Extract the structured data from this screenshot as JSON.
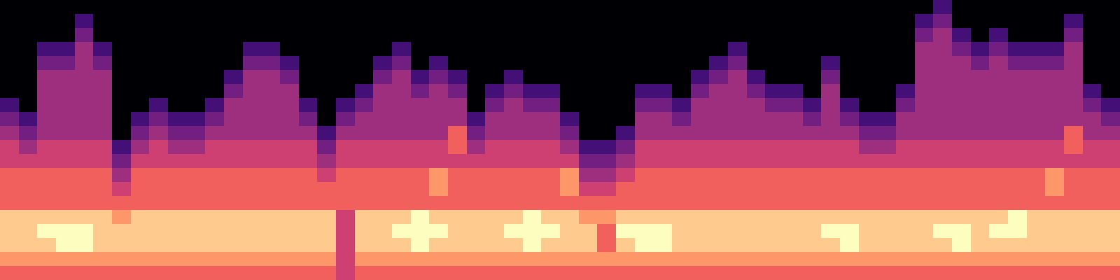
{
  "chart_data": {
    "type": "heatmap",
    "color": "magma",
    "zlim": [
      0,
      9
    ],
    "tick_labels": false,
    "cells": [
      [
        0,
        0,
        0,
        0,
        0,
        0,
        0,
        0,
        0,
        0,
        0,
        0,
        0,
        0,
        0,
        0,
        0,
        0,
        0,
        0,
        0,
        0,
        0,
        0,
        0,
        0,
        0,
        0,
        0,
        0,
        0,
        0,
        0,
        0,
        0,
        0,
        0,
        0,
        0,
        0,
        0,
        0,
        0,
        0,
        0,
        0,
        0,
        0,
        0,
        0,
        2,
        0,
        0,
        0,
        0,
        0,
        0,
        0,
        0,
        0
      ],
      [
        0,
        0,
        0,
        0,
        2,
        0,
        0,
        0,
        0,
        0,
        0,
        0,
        0,
        0,
        0,
        0,
        0,
        0,
        0,
        0,
        0,
        0,
        0,
        0,
        0,
        0,
        0,
        0,
        0,
        0,
        0,
        0,
        0,
        0,
        0,
        0,
        0,
        0,
        0,
        0,
        0,
        0,
        0,
        0,
        0,
        0,
        0,
        0,
        0,
        2,
        3,
        0,
        0,
        0,
        0,
        0,
        0,
        2,
        0,
        0
      ],
      [
        0,
        0,
        0,
        0,
        3,
        0,
        0,
        0,
        0,
        0,
        0,
        0,
        0,
        0,
        0,
        0,
        0,
        0,
        0,
        0,
        0,
        0,
        0,
        0,
        0,
        0,
        0,
        0,
        0,
        0,
        0,
        0,
        0,
        0,
        0,
        0,
        0,
        0,
        0,
        0,
        0,
        0,
        0,
        0,
        0,
        0,
        0,
        0,
        0,
        3,
        4,
        2,
        0,
        2,
        0,
        0,
        0,
        3,
        0,
        0
      ],
      [
        0,
        0,
        2,
        2,
        4,
        2,
        0,
        0,
        0,
        0,
        0,
        0,
        0,
        2,
        2,
        0,
        0,
        0,
        0,
        0,
        0,
        2,
        0,
        0,
        0,
        0,
        0,
        0,
        0,
        0,
        0,
        0,
        0,
        0,
        0,
        0,
        0,
        0,
        0,
        2,
        0,
        0,
        0,
        0,
        0,
        0,
        0,
        0,
        0,
        4,
        4,
        3,
        2,
        3,
        2,
        2,
        2,
        4,
        0,
        0
      ],
      [
        0,
        0,
        3,
        3,
        4,
        3,
        0,
        0,
        0,
        0,
        0,
        0,
        0,
        3,
        3,
        2,
        0,
        0,
        0,
        0,
        2,
        3,
        0,
        2,
        0,
        0,
        0,
        0,
        0,
        0,
        0,
        0,
        0,
        0,
        0,
        0,
        0,
        0,
        2,
        3,
        0,
        0,
        0,
        0,
        2,
        0,
        0,
        0,
        0,
        4,
        4,
        4,
        3,
        4,
        3,
        3,
        3,
        4,
        0,
        0
      ],
      [
        0,
        0,
        4,
        4,
        4,
        4,
        0,
        0,
        0,
        0,
        0,
        0,
        2,
        4,
        4,
        3,
        0,
        0,
        0,
        0,
        3,
        4,
        2,
        3,
        2,
        0,
        0,
        2,
        0,
        0,
        0,
        0,
        0,
        0,
        0,
        0,
        0,
        2,
        3,
        4,
        2,
        0,
        0,
        0,
        3,
        0,
        0,
        0,
        0,
        4,
        4,
        4,
        4,
        4,
        4,
        4,
        4,
        4,
        0,
        0
      ],
      [
        0,
        0,
        4,
        4,
        4,
        4,
        0,
        0,
        0,
        0,
        0,
        0,
        3,
        4,
        4,
        4,
        0,
        0,
        0,
        2,
        4,
        4,
        3,
        4,
        3,
        0,
        2,
        3,
        2,
        2,
        0,
        0,
        0,
        0,
        2,
        2,
        0,
        3,
        4,
        4,
        3,
        2,
        2,
        0,
        4,
        0,
        0,
        0,
        2,
        4,
        4,
        4,
        4,
        4,
        4,
        4,
        4,
        4,
        2,
        0
      ],
      [
        2,
        0,
        4,
        4,
        4,
        4,
        0,
        0,
        2,
        0,
        0,
        2,
        4,
        4,
        4,
        4,
        2,
        0,
        2,
        3,
        4,
        4,
        4,
        4,
        4,
        0,
        3,
        4,
        3,
        3,
        0,
        0,
        0,
        0,
        3,
        3,
        2,
        4,
        4,
        4,
        4,
        3,
        3,
        2,
        4,
        2,
        0,
        0,
        3,
        4,
        4,
        4,
        4,
        4,
        4,
        4,
        4,
        4,
        3,
        2
      ],
      [
        3,
        2,
        4,
        4,
        4,
        4,
        0,
        2,
        3,
        2,
        2,
        3,
        4,
        4,
        4,
        4,
        3,
        0,
        3,
        4,
        4,
        4,
        4,
        4,
        4,
        2,
        4,
        4,
        4,
        4,
        2,
        0,
        0,
        0,
        4,
        4,
        3,
        4,
        4,
        4,
        4,
        4,
        4,
        3,
        4,
        3,
        2,
        2,
        4,
        4,
        4,
        4,
        4,
        4,
        4,
        4,
        4,
        4,
        4,
        3
      ],
      [
        4,
        3,
        4,
        4,
        4,
        4,
        0,
        3,
        4,
        3,
        3,
        4,
        4,
        4,
        4,
        4,
        4,
        2,
        4,
        4,
        4,
        4,
        4,
        4,
        6,
        3,
        4,
        4,
        4,
        4,
        3,
        0,
        0,
        2,
        4,
        4,
        4,
        4,
        4,
        4,
        4,
        4,
        4,
        4,
        4,
        4,
        3,
        3,
        4,
        4,
        4,
        4,
        4,
        4,
        4,
        4,
        4,
        6,
        4,
        4
      ],
      [
        5,
        4,
        5,
        5,
        5,
        5,
        2,
        4,
        5,
        4,
        4,
        5,
        5,
        5,
        5,
        5,
        5,
        3,
        5,
        5,
        5,
        5,
        5,
        5,
        6,
        4,
        5,
        5,
        5,
        5,
        4,
        2,
        2,
        3,
        5,
        5,
        5,
        5,
        5,
        5,
        5,
        5,
        5,
        5,
        5,
        5,
        4,
        4,
        5,
        5,
        5,
        5,
        5,
        5,
        5,
        5,
        5,
        6,
        5,
        5
      ],
      [
        5,
        5,
        5,
        5,
        5,
        5,
        3,
        5,
        5,
        5,
        5,
        5,
        5,
        5,
        5,
        5,
        5,
        4,
        5,
        5,
        5,
        5,
        5,
        5,
        5,
        5,
        5,
        5,
        5,
        5,
        5,
        3,
        3,
        4,
        5,
        5,
        5,
        5,
        5,
        5,
        5,
        5,
        5,
        5,
        5,
        5,
        5,
        5,
        5,
        5,
        5,
        5,
        5,
        5,
        5,
        5,
        5,
        5,
        5,
        5
      ],
      [
        6,
        6,
        6,
        6,
        6,
        6,
        4,
        6,
        6,
        6,
        6,
        6,
        6,
        6,
        6,
        6,
        6,
        5,
        6,
        6,
        6,
        6,
        6,
        7,
        6,
        6,
        6,
        6,
        6,
        6,
        7,
        4,
        4,
        5,
        6,
        6,
        6,
        6,
        6,
        6,
        6,
        6,
        6,
        6,
        6,
        6,
        6,
        6,
        6,
        6,
        6,
        6,
        6,
        6,
        6,
        6,
        7,
        6,
        6,
        6
      ],
      [
        6,
        6,
        6,
        6,
        6,
        6,
        5,
        6,
        6,
        6,
        6,
        6,
        6,
        6,
        6,
        6,
        6,
        6,
        6,
        6,
        6,
        6,
        6,
        7,
        6,
        6,
        6,
        6,
        6,
        6,
        7,
        5,
        5,
        6,
        6,
        6,
        6,
        6,
        6,
        6,
        6,
        6,
        6,
        6,
        6,
        6,
        6,
        6,
        6,
        6,
        6,
        6,
        6,
        6,
        6,
        6,
        7,
        6,
        6,
        6
      ],
      [
        6,
        6,
        6,
        6,
        6,
        6,
        6,
        6,
        6,
        6,
        6,
        6,
        6,
        6,
        6,
        6,
        6,
        6,
        6,
        6,
        6,
        6,
        6,
        6,
        6,
        6,
        6,
        6,
        6,
        6,
        6,
        6,
        6,
        6,
        6,
        6,
        6,
        6,
        6,
        6,
        6,
        6,
        6,
        6,
        6,
        6,
        6,
        6,
        6,
        6,
        6,
        6,
        6,
        6,
        6,
        6,
        6,
        6,
        6,
        6
      ],
      [
        8,
        8,
        8,
        8,
        8,
        8,
        7,
        8,
        8,
        8,
        8,
        8,
        8,
        8,
        8,
        8,
        8,
        8,
        5,
        8,
        8,
        8,
        9,
        8,
        8,
        8,
        8,
        8,
        9,
        8,
        8,
        7,
        7,
        8,
        8,
        8,
        8,
        8,
        8,
        8,
        8,
        8,
        8,
        8,
        8,
        8,
        8,
        8,
        8,
        8,
        8,
        8,
        8,
        8,
        9,
        8,
        8,
        8,
        8,
        8
      ],
      [
        8,
        8,
        9,
        9,
        9,
        8,
        8,
        8,
        8,
        8,
        8,
        8,
        8,
        8,
        8,
        8,
        8,
        8,
        5,
        8,
        8,
        9,
        9,
        9,
        8,
        8,
        8,
        9,
        9,
        9,
        8,
        8,
        6,
        9,
        9,
        9,
        8,
        8,
        8,
        8,
        8,
        8,
        8,
        8,
        9,
        9,
        8,
        8,
        8,
        8,
        9,
        9,
        8,
        9,
        9,
        8,
        8,
        8,
        8,
        8
      ],
      [
        8,
        8,
        8,
        9,
        9,
        8,
        8,
        8,
        8,
        8,
        8,
        8,
        8,
        8,
        8,
        8,
        8,
        8,
        5,
        8,
        8,
        8,
        9,
        8,
        8,
        8,
        8,
        8,
        9,
        8,
        8,
        8,
        6,
        8,
        9,
        9,
        8,
        8,
        8,
        8,
        8,
        8,
        8,
        8,
        8,
        9,
        8,
        8,
        8,
        8,
        8,
        9,
        8,
        8,
        8,
        8,
        8,
        8,
        8,
        8
      ],
      [
        7,
        7,
        7,
        7,
        7,
        7,
        7,
        7,
        7,
        7,
        7,
        7,
        7,
        7,
        7,
        7,
        7,
        7,
        5,
        7,
        7,
        7,
        7,
        7,
        7,
        7,
        7,
        7,
        7,
        7,
        7,
        7,
        7,
        7,
        7,
        7,
        7,
        7,
        7,
        7,
        7,
        7,
        7,
        7,
        7,
        7,
        7,
        7,
        7,
        7,
        7,
        7,
        7,
        7,
        7,
        7,
        7,
        7,
        7,
        7
      ],
      [
        6,
        6,
        6,
        6,
        6,
        6,
        6,
        6,
        6,
        6,
        6,
        6,
        6,
        6,
        6,
        6,
        6,
        6,
        5,
        6,
        6,
        6,
        6,
        6,
        6,
        6,
        6,
        6,
        6,
        6,
        6,
        6,
        6,
        6,
        6,
        6,
        6,
        6,
        6,
        6,
        6,
        6,
        6,
        6,
        6,
        6,
        6,
        6,
        6,
        6,
        6,
        6,
        6,
        6,
        6,
        6,
        6,
        6,
        6,
        6
      ]
    ]
  }
}
